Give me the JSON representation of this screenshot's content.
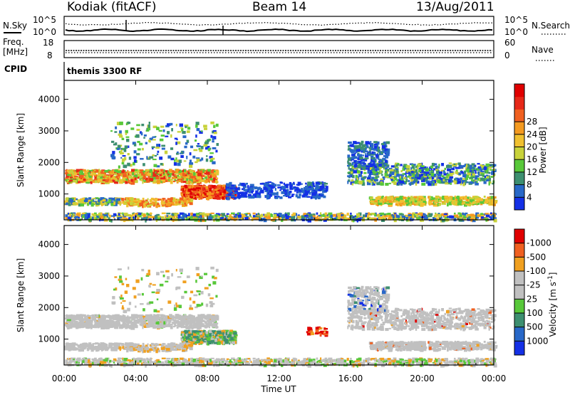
{
  "header": {
    "station": "Kodiak (fitACF)",
    "beam": "Beam 14",
    "date": "13/Aug/2011"
  },
  "noise_panel": {
    "left_label": "N.Sky",
    "right_label": "N.Search",
    "y_ticks": [
      "10^5",
      "10^0"
    ]
  },
  "freq_panel": {
    "left_label_line1": "Freq.",
    "left_label_line2": "[MHz]",
    "left_ticks": [
      "18",
      "8"
    ],
    "right_label": "Nave",
    "right_ticks": [
      "60",
      "0"
    ]
  },
  "cpid": {
    "label": "CPID",
    "value": "themis 3300 RF"
  },
  "chart_data": [
    {
      "type": "heatmap",
      "title": "",
      "ylabel": "Slant Range [km]",
      "xlabel": "",
      "x_ticks": [
        "00:00",
        "04:00",
        "08:00",
        "12:00",
        "16:00",
        "20:00",
        "00:00"
      ],
      "y_ticks": [
        "1000",
        "2000",
        "3000",
        "4000"
      ],
      "x_range_hours": [
        0,
        24
      ],
      "y_range_km": [
        180,
        4600
      ],
      "colorbar": {
        "label": "Power [dB]",
        "ticks": [
          "4",
          "8",
          "12",
          "16",
          "20",
          "24",
          "28"
        ],
        "colors": [
          "#1430e6",
          "#2868c8",
          "#3d8f70",
          "#58c83a",
          "#c8d23a",
          "#f0c030",
          "#f49a20",
          "#f06020",
          "#e62818",
          "#e00000"
        ]
      },
      "echo_regions": [
        {
          "t0": 0.0,
          "t1": 8.5,
          "r0": 1400,
          "r1": 1800,
          "level": "16-24 dB"
        },
        {
          "t0": 6.5,
          "t1": 9.5,
          "r0": 900,
          "r1": 1300,
          "level": "24-28+ dB"
        },
        {
          "t0": 9.0,
          "t1": 14.5,
          "r0": 900,
          "r1": 1400,
          "level": "4-8 dB"
        },
        {
          "t0": 15.8,
          "t1": 24.0,
          "r0": 1400,
          "r1": 2000,
          "level": "8-16 dB"
        },
        {
          "t0": 17.0,
          "t1": 24.0,
          "r0": 700,
          "r1": 950,
          "level": "12-20 dB"
        }
      ]
    },
    {
      "type": "heatmap",
      "title": "",
      "ylabel": "Slant Range [km]",
      "xlabel": "Time UT",
      "x_ticks": [
        "00:00",
        "04:00",
        "08:00",
        "12:00",
        "16:00",
        "20:00",
        "00:00"
      ],
      "y_ticks": [
        "1000",
        "2000",
        "3000",
        "4000"
      ],
      "x_range_hours": [
        0,
        24
      ],
      "y_range_km": [
        180,
        4600
      ],
      "colorbar": {
        "label": "Velocity [m s^-1]",
        "ticks": [
          "1000",
          "500",
          "100",
          "25",
          "-25",
          "-100",
          "-500",
          "-1000"
        ],
        "colors": [
          "#1430e6",
          "#2868c8",
          "#3d8f70",
          "#58c83a",
          "#c0c0c0",
          "#c0c0c0",
          "#f0a020",
          "#f06020",
          "#e00000"
        ]
      },
      "echo_regions": [
        {
          "t0": 0.0,
          "t1": 8.5,
          "r0": 1400,
          "r1": 1800,
          "level": "-25..25 m/s"
        },
        {
          "t0": 6.5,
          "t1": 9.5,
          "r0": 900,
          "r1": 1300,
          "level": "25..500 m/s"
        },
        {
          "t0": 15.8,
          "t1": 24.0,
          "r0": 1400,
          "r1": 2000,
          "level": "-25..25 m/s"
        },
        {
          "t0": 17.0,
          "t1": 24.0,
          "r0": 700,
          "r1": 950,
          "level": "-25..25 m/s"
        }
      ]
    }
  ]
}
